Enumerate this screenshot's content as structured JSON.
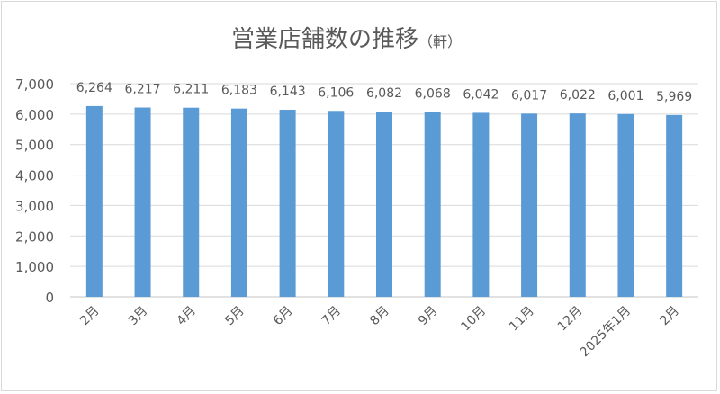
{
  "chart_data": {
    "type": "bar",
    "title": "営業店舗数の推移",
    "unit": "（軒）",
    "categories": [
      "2月",
      "3月",
      "4月",
      "5月",
      "6月",
      "7月",
      "8月",
      "9月",
      "10月",
      "11月",
      "12月",
      "2025年1月",
      "2月"
    ],
    "values": [
      6264,
      6217,
      6211,
      6183,
      6143,
      6106,
      6082,
      6068,
      6042,
      6017,
      6022,
      6001,
      5969
    ],
    "data_labels": [
      "6,264",
      "6,217",
      "6,211",
      "6,183",
      "6,143",
      "6,106",
      "6,082",
      "6,068",
      "6,042",
      "6,017",
      "6,022",
      "6,001",
      "5,969"
    ],
    "yticks": [
      "0",
      "1,000",
      "2,000",
      "3,000",
      "4,000",
      "5,000",
      "6,000",
      "7,000"
    ],
    "ylim": [
      0,
      7000
    ],
    "grid": true,
    "legend": "none",
    "bar_color": "#5b9bd5"
  }
}
